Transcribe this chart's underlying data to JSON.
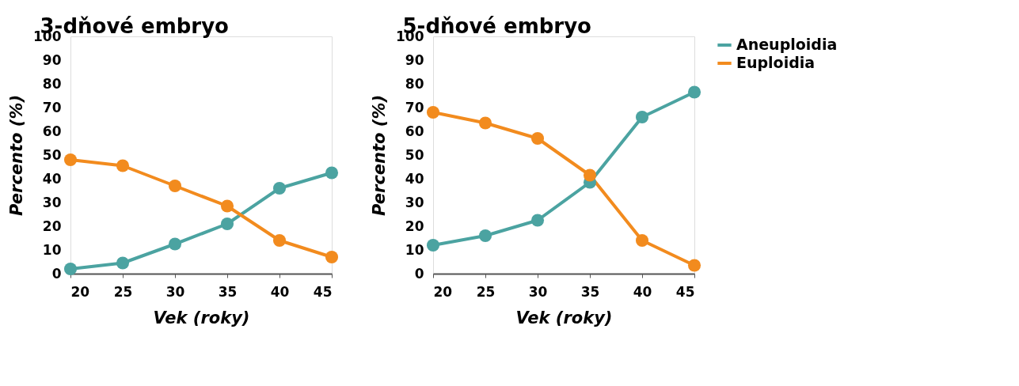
{
  "chart_data": [
    {
      "type": "line",
      "title": "3-dňové embryo",
      "xlabel": "Vek (roky)",
      "ylabel": "Percento (%)",
      "x": [
        20,
        25,
        30,
        35,
        40,
        45
      ],
      "xlim": [
        20,
        45
      ],
      "xticks": [
        20,
        25,
        30,
        35,
        40,
        45
      ],
      "ylim": [
        0,
        100
      ],
      "yticks": [
        0,
        10,
        20,
        30,
        40,
        50,
        60,
        70,
        80,
        90,
        100
      ],
      "grid": false,
      "marker": "circle",
      "line_style": "solid",
      "legend": "right",
      "series": [
        {
          "name": "Aneuploidia",
          "color": "#4ba3a1",
          "values": [
            2,
            4.5,
            12.5,
            21,
            36,
            42.5
          ]
        },
        {
          "name": "Euploidia",
          "color": "#f28b1e",
          "values": [
            48,
            45.5,
            37,
            28.5,
            14,
            7
          ]
        }
      ]
    },
    {
      "type": "line",
      "title": "5-dňové embryo",
      "xlabel": "Vek (roky)",
      "ylabel": "Percento (%)",
      "x": [
        20,
        25,
        30,
        35,
        40,
        45
      ],
      "xlim": [
        20,
        45
      ],
      "xticks": [
        20,
        25,
        30,
        35,
        40,
        45
      ],
      "ylim": [
        0,
        100
      ],
      "yticks": [
        0,
        10,
        20,
        30,
        40,
        50,
        60,
        70,
        80,
        90,
        100
      ],
      "grid": false,
      "marker": "circle",
      "line_style": "solid",
      "legend": "right",
      "series": [
        {
          "name": "Aneuploidia",
          "color": "#4ba3a1",
          "values": [
            12,
            16,
            22.5,
            38.5,
            66,
            76.5
          ]
        },
        {
          "name": "Euploidia",
          "color": "#f28b1e",
          "values": [
            68,
            63.5,
            57,
            41.5,
            14,
            3.5
          ]
        }
      ]
    }
  ]
}
